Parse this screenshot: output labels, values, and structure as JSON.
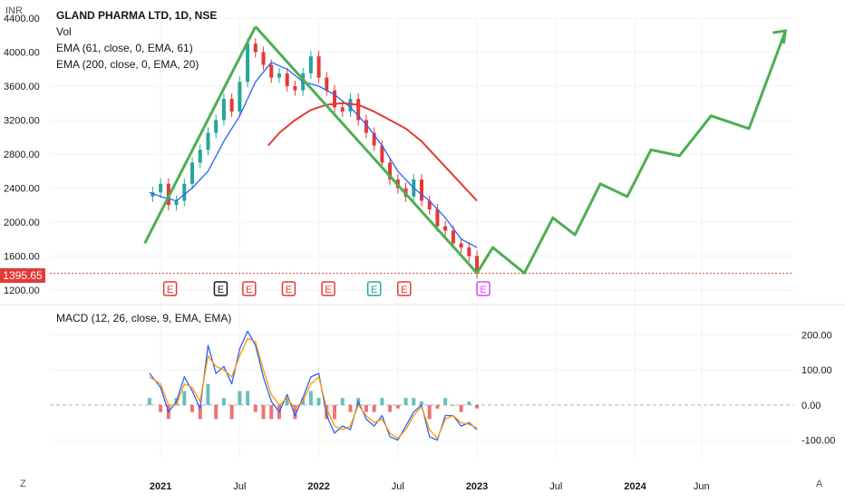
{
  "header": {
    "symbol_title": "GLAND PHARMA LTD, 1D, NSE",
    "currency": "INR",
    "vol_label": "Vol",
    "ema1_label": "EMA (61, close, 0, EMA, 61)",
    "ema2_label": "EMA (200, close, 0, EMA, 20)"
  },
  "macd": {
    "label": "MACD (12, 26, close, 9, EMA, EMA)"
  },
  "last_price": "1395.65",
  "footer": {
    "left_icon": "Z",
    "right_icon": "A"
  },
  "colors": {
    "green": "#4caf50",
    "red": "#e53935",
    "blue": "#2962ff",
    "orange": "#ff9800",
    "teal": "#26a69a"
  },
  "earnings_markers": [
    {
      "label": "E",
      "color": "#e53935"
    },
    {
      "label": "E",
      "color": "#131722"
    },
    {
      "label": "E",
      "color": "#e53935"
    },
    {
      "label": "E",
      "color": "#e53935"
    },
    {
      "label": "E",
      "color": "#e53935"
    },
    {
      "label": "E",
      "color": "#26a69a"
    },
    {
      "label": "E",
      "color": "#e53935"
    },
    {
      "label": "E",
      "color": "#e040fb"
    }
  ],
  "chart_data": [
    {
      "type": "line",
      "title": "GLAND PHARMA LTD, 1D, NSE",
      "ylabel": "INR",
      "ylim": [
        1200,
        4400
      ],
      "yticks": [
        "4400.00",
        "4000.00",
        "3600.00",
        "3200.00",
        "2800.00",
        "2400.00",
        "2000.00",
        "1600.00",
        "1200.00"
      ],
      "xticks": [
        {
          "label": "2021",
          "x": 2021.0,
          "bold": true
        },
        {
          "label": "Jul",
          "x": 2021.5,
          "bold": false
        },
        {
          "label": "2022",
          "x": 2022.0,
          "bold": true
        },
        {
          "label": "Jul",
          "x": 2022.5,
          "bold": false
        },
        {
          "label": "2023",
          "x": 2023.0,
          "bold": true
        },
        {
          "label": "Jul",
          "x": 2023.5,
          "bold": false
        },
        {
          "label": "2024",
          "x": 2024.0,
          "bold": true
        },
        {
          "label": "Jun",
          "x": 2024.42,
          "bold": false
        }
      ],
      "xlim": [
        2020.3,
        2025.0
      ],
      "series": [
        {
          "role": "price",
          "x": [
            2020.9,
            2020.95,
            2021.0,
            2021.05,
            2021.1,
            2021.15,
            2021.2,
            2021.25,
            2021.3,
            2021.35,
            2021.4,
            2021.45,
            2021.5,
            2021.55,
            2021.6,
            2021.65,
            2021.7,
            2021.75,
            2021.8,
            2021.85,
            2021.9,
            2021.95,
            2022.0,
            2022.05,
            2022.1,
            2022.15,
            2022.2,
            2022.25,
            2022.3,
            2022.35,
            2022.4,
            2022.45,
            2022.5,
            2022.55,
            2022.6,
            2022.65,
            2022.7,
            2022.75,
            2022.8,
            2022.85,
            2022.9,
            2022.95,
            2023.0
          ],
          "values": [
            2300,
            2350,
            2450,
            2200,
            2250,
            2450,
            2700,
            2850,
            3050,
            3200,
            3450,
            3300,
            3650,
            4100,
            4000,
            3850,
            3700,
            3750,
            3600,
            3550,
            3750,
            3950,
            3700,
            3550,
            3350,
            3300,
            3450,
            3200,
            3050,
            2900,
            2700,
            2500,
            2400,
            2300,
            2500,
            2250,
            2150,
            1950,
            1900,
            1750,
            1700,
            1600,
            1400
          ]
        },
        {
          "name": "EMA (61, close, 0, EMA, 61)",
          "role": "ema61",
          "x": [
            2020.93,
            2021.0,
            2021.1,
            2021.2,
            2021.3,
            2021.4,
            2021.5,
            2021.6,
            2021.7,
            2021.8,
            2021.9,
            2022.0,
            2022.1,
            2022.2,
            2022.3,
            2022.4,
            2022.5,
            2022.6,
            2022.7,
            2022.8,
            2022.9,
            2023.0
          ],
          "values": [
            2350,
            2300,
            2250,
            2400,
            2600,
            2950,
            3250,
            3650,
            3880,
            3800,
            3650,
            3600,
            3500,
            3350,
            3150,
            2900,
            2600,
            2400,
            2250,
            2050,
            1800,
            1700
          ]
        },
        {
          "name": "EMA (200, close, 0, EMA, 20)",
          "role": "ema200",
          "x": [
            2021.68,
            2021.75,
            2021.85,
            2021.95,
            2022.05,
            2022.15,
            2022.25,
            2022.35,
            2022.45,
            2022.55,
            2022.65,
            2022.75,
            2022.85,
            2022.95,
            2023.0
          ],
          "values": [
            2900,
            3050,
            3200,
            3320,
            3380,
            3400,
            3380,
            3300,
            3200,
            3100,
            2950,
            2750,
            2550,
            2350,
            2250
          ]
        }
      ],
      "annotations": [
        {
          "type": "trendline",
          "color": "#4caf50",
          "x": [
            2020.9,
            2021.6
          ],
          "y": [
            1750,
            4300
          ]
        },
        {
          "type": "trendline",
          "color": "#4caf50",
          "x": [
            2021.6,
            2023.0
          ],
          "y": [
            4300,
            1400
          ]
        },
        {
          "type": "projection",
          "color": "#4caf50",
          "x": [
            2023.0,
            2023.1,
            2023.3,
            2023.48,
            2023.62,
            2023.78,
            2023.95,
            2024.1,
            2024.28,
            2024.48,
            2024.72,
            2024.95
          ],
          "y": [
            1400,
            1700,
            1400,
            2050,
            1850,
            2450,
            2300,
            2850,
            2780,
            3250,
            3100,
            4250
          ]
        }
      ],
      "last_price": 1395.65
    },
    {
      "type": "line",
      "title": "MACD (12, 26, close, 9, EMA, EMA)",
      "ylim": [
        -150,
        250
      ],
      "yticks": [
        "200.00",
        "100.00",
        "0.00",
        "-100.00"
      ],
      "series": [
        {
          "role": "macd",
          "x": [
            2020.93,
            2021.0,
            2021.05,
            2021.1,
            2021.15,
            2021.2,
            2021.25,
            2021.3,
            2021.35,
            2021.4,
            2021.45,
            2021.5,
            2021.55,
            2021.6,
            2021.65,
            2021.7,
            2021.75,
            2021.8,
            2021.85,
            2021.9,
            2021.95,
            2022.0,
            2022.05,
            2022.1,
            2022.15,
            2022.2,
            2022.25,
            2022.3,
            2022.35,
            2022.4,
            2022.45,
            2022.5,
            2022.55,
            2022.6,
            2022.65,
            2022.7,
            2022.75,
            2022.8,
            2022.85,
            2022.9,
            2022.95,
            2023.0
          ],
          "values": [
            90,
            50,
            -20,
            10,
            80,
            40,
            -10,
            170,
            90,
            110,
            60,
            160,
            210,
            170,
            80,
            10,
            -20,
            30,
            -30,
            20,
            80,
            90,
            -30,
            -80,
            -60,
            -70,
            10,
            -40,
            -60,
            -30,
            -90,
            -100,
            -60,
            -20,
            0,
            -90,
            -100,
            -30,
            -30,
            -60,
            -50,
            -70
          ]
        },
        {
          "role": "signal",
          "x": [
            2020.93,
            2021.0,
            2021.05,
            2021.1,
            2021.15,
            2021.2,
            2021.25,
            2021.3,
            2021.35,
            2021.4,
            2021.45,
            2021.5,
            2021.55,
            2021.6,
            2021.65,
            2021.7,
            2021.75,
            2021.8,
            2021.85,
            2021.9,
            2021.95,
            2022.0,
            2022.05,
            2022.1,
            2022.15,
            2022.2,
            2022.25,
            2022.3,
            2022.35,
            2022.4,
            2022.45,
            2022.5,
            2022.55,
            2022.6,
            2022.65,
            2022.7,
            2022.75,
            2022.8,
            2022.85,
            2022.9,
            2022.95,
            2023.0
          ],
          "values": [
            80,
            60,
            0,
            0,
            60,
            50,
            10,
            140,
            110,
            100,
            80,
            140,
            190,
            180,
            100,
            30,
            0,
            20,
            -10,
            10,
            60,
            80,
            -10,
            -60,
            -70,
            -60,
            0,
            -30,
            -50,
            -40,
            -80,
            -95,
            -70,
            -30,
            -5,
            -70,
            -95,
            -40,
            -30,
            -50,
            -55,
            -65
          ]
        }
      ]
    }
  ]
}
